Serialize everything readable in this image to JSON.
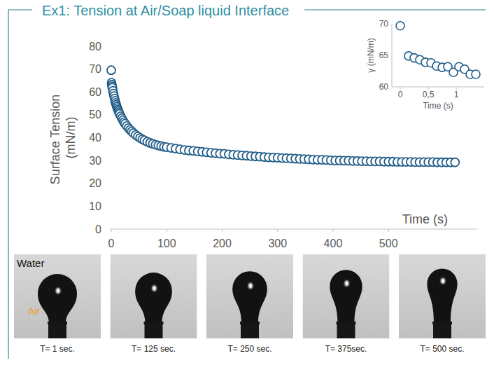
{
  "header": {
    "title": "Ex1: Tension at Air/Soap liquid Interface"
  },
  "chart_data": [
    {
      "type": "scatter",
      "x_label": "Time (s)",
      "y_label": "Surface Tension (mN/m)",
      "color": "#1f5c87",
      "marker": "circle",
      "grid": false,
      "x": [
        0,
        0.5,
        1,
        1.5,
        2,
        3,
        4,
        5,
        6,
        7,
        8,
        9,
        10,
        11,
        12,
        13,
        14,
        15,
        17,
        19,
        21,
        23,
        25,
        28,
        31,
        34,
        37,
        40,
        44,
        48,
        52,
        56,
        60,
        65,
        70,
        75,
        80,
        85,
        90,
        95,
        100,
        108,
        116,
        124,
        132,
        140,
        148,
        156,
        164,
        172,
        180,
        188,
        196,
        204,
        212,
        220,
        228,
        236,
        244,
        252,
        260,
        268,
        276,
        284,
        292,
        300,
        308,
        316,
        324,
        332,
        340,
        348,
        356,
        364,
        372,
        380,
        388,
        396,
        404,
        412,
        420,
        428,
        436,
        444,
        452,
        460,
        468,
        476,
        484,
        492,
        500,
        508,
        516,
        524,
        532,
        540,
        548,
        556,
        564,
        572,
        580,
        588,
        596,
        604,
        612,
        620
      ],
      "values": [
        69.5,
        64.0,
        63.2,
        62.5,
        61.8,
        60.5,
        59.3,
        58.2,
        57.1,
        56.1,
        55.2,
        54.4,
        53.6,
        52.9,
        52.2,
        51.6,
        51.0,
        50.4,
        49.4,
        48.5,
        47.6,
        46.8,
        46.1,
        45.1,
        44.2,
        43.4,
        42.7,
        42.0,
        41.2,
        40.5,
        39.9,
        39.3,
        38.8,
        38.2,
        37.7,
        37.3,
        36.9,
        36.6,
        36.3,
        36.0,
        35.8,
        35.5,
        35.2,
        34.9,
        34.6,
        34.4,
        34.2,
        34.0,
        33.8,
        33.6,
        33.4,
        33.2,
        33.0,
        32.9,
        32.7,
        32.5,
        32.4,
        32.2,
        32.1,
        31.9,
        31.8,
        31.7,
        31.5,
        31.4,
        31.3,
        31.2,
        31.1,
        31.0,
        30.9,
        30.8,
        30.7,
        30.6,
        30.5,
        30.4,
        30.3,
        30.3,
        30.2,
        30.1,
        30.0,
        30.0,
        29.9,
        29.9,
        29.8,
        29.8,
        29.7,
        29.7,
        29.6,
        29.6,
        29.6,
        29.5,
        29.5,
        29.5,
        29.4,
        29.4,
        29.4,
        29.4,
        29.3,
        29.3,
        29.3,
        29.3,
        29.3,
        29.2,
        29.2,
        29.2,
        29.2,
        29.2
      ],
      "xlim": [
        0,
        660
      ],
      "xticks": [
        0,
        100,
        200,
        300,
        400,
        500
      ],
      "ylim": [
        0,
        80
      ],
      "yticks": [
        0,
        10,
        20,
        30,
        40,
        50,
        60,
        70,
        80
      ]
    },
    {
      "type": "scatter",
      "x_label": "Time (s)",
      "y_label": "γ (mN/m)",
      "color": "#1f5c87",
      "marker": "circle",
      "grid": false,
      "x": [
        0,
        0.15,
        0.25,
        0.35,
        0.45,
        0.55,
        0.65,
        0.75,
        0.85,
        0.95,
        1.05,
        1.15,
        1.25,
        1.35
      ],
      "values": [
        69.7,
        64.9,
        64.6,
        64.3,
        63.9,
        63.8,
        63.3,
        63.1,
        63.2,
        62.3,
        63.2,
        62.8,
        62.0,
        62.0
      ],
      "xlim": [
        -0.15,
        1.5
      ],
      "xticks": [
        0,
        {
          "value": 0.5,
          "label": "0,5"
        },
        1
      ],
      "ylim": [
        60,
        70
      ],
      "yticks": [
        60,
        65,
        70
      ]
    }
  ],
  "photos": [
    {
      "caption": "T= 1 sec.",
      "labels": [
        "Water",
        "Air"
      ]
    },
    {
      "caption": "T= 125 sec."
    },
    {
      "caption": "T= 250 sec."
    },
    {
      "caption": "T= 375sec."
    },
    {
      "caption": "T= 500 sec."
    }
  ]
}
